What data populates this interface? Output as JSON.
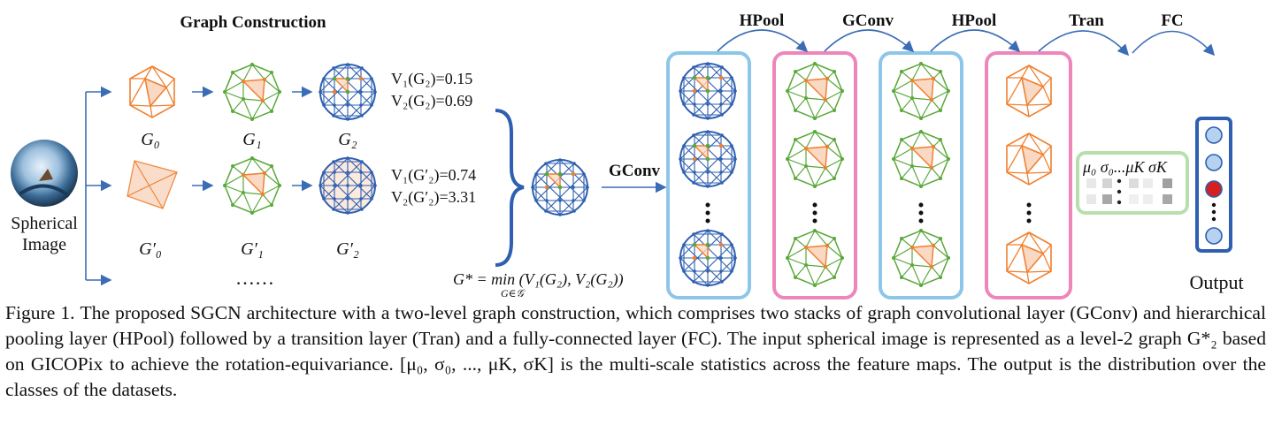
{
  "figure": {
    "graph_construction_title": "Graph Construction",
    "input_label_line1": "Spherical",
    "input_label_line2": "Image",
    "graph_labels": {
      "g0": "G₀",
      "g1": "G₁",
      "g2": "G₂",
      "g0p": "G′₀",
      "g1p": "G′₁",
      "g2p": "G′₂"
    },
    "ellipsis": "……",
    "values_top": [
      "V₁(G₂)=0.15",
      "V₂(G₂)=0.69"
    ],
    "values_bottom": [
      "V₁(G′₂)=0.74",
      "V₂(G′₂)=3.31"
    ],
    "selection_eq": "G* = min (V₁(G₂), V₂(G₂))",
    "selection_eq_sub": "G∈𝒢",
    "gconv_label": "GConv",
    "layer_labels": [
      "HPool",
      "GConv",
      "HPool",
      "Tran",
      "FC"
    ],
    "stats_label": "μ₀ σ₀...μK σK",
    "output_label": "Output",
    "colors": {
      "orange": "#f08030",
      "green": "#5aa83a",
      "blue": "#2e5fb0",
      "panel_blue": "#8cc6e8",
      "panel_pink": "#ee86bc",
      "arrow": "#3a6db5",
      "output_red": "#d42020"
    }
  },
  "caption": {
    "label": "Figure 1.",
    "text": "The proposed SGCN architecture with a two-level graph construction, which comprises two stacks of graph convolutional layer (GConv) and hierarchical pooling layer (HPool) followed by a transition layer (Tran) and a fully-connected layer (FC). The input spherical image is represented as a level-2 graph G*₂ based on GICOPix to achieve the rotation-equivariance. [μ₀, σ₀, ..., μK, σK] is the multi-scale statistics across the feature maps. The output is the distribution over the classes of the datasets."
  }
}
